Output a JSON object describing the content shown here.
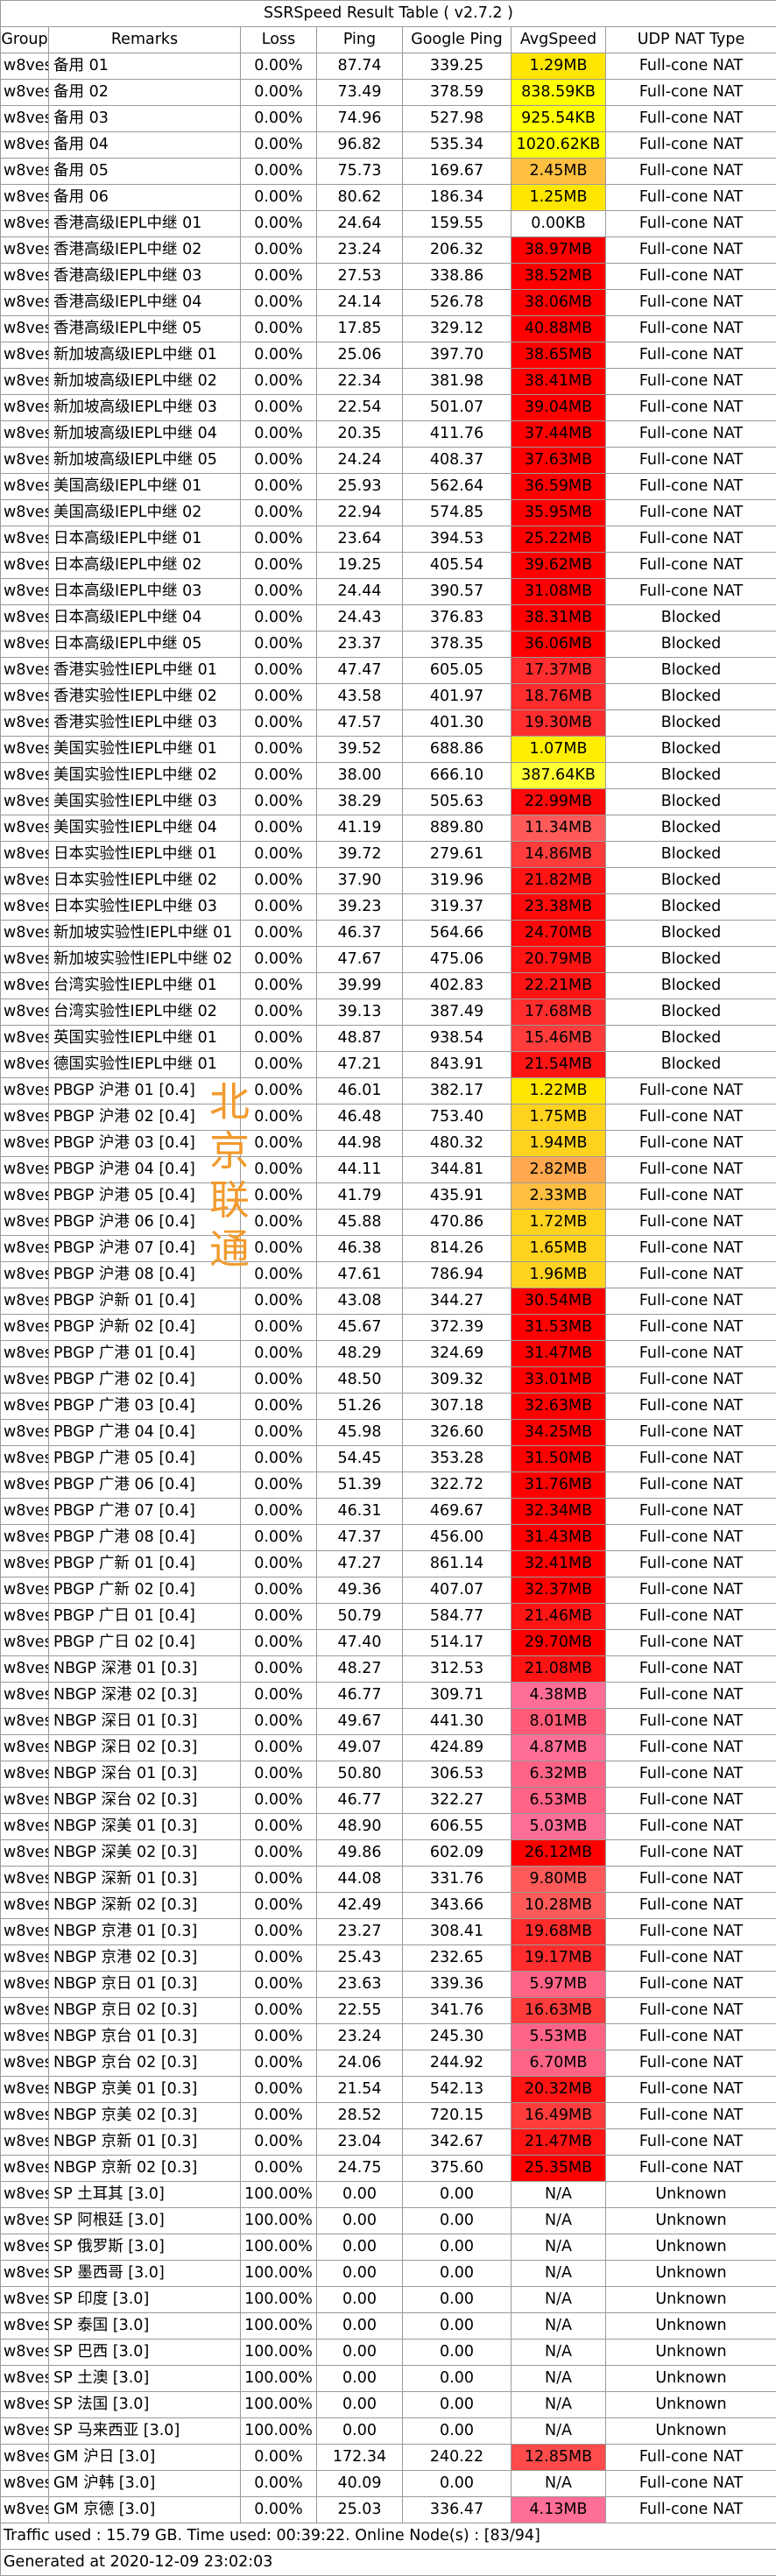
{
  "title": "SSRSpeed Result Table ( v2.7.2 )",
  "headers": [
    "Group",
    "Remarks",
    "Loss",
    "Ping",
    "Google Ping",
    "AvgSpeed",
    "UDP NAT Type"
  ],
  "watermark": [
    "北",
    "京",
    "联",
    "通"
  ],
  "colors": {
    "fast": "#ff0000",
    "mid": "#fa8072",
    "slow": "#ff69b4",
    "okay": "#ffa84d",
    "low": "#ffd700",
    "lower": "#ffff00",
    "none": "#ffffff"
  },
  "rows": [
    [
      "w8ves",
      "备用 01",
      "0.00%",
      "87.74",
      "339.25",
      "1.29MB",
      "Full-cone NAT",
      "#ffe600"
    ],
    [
      "w8ves",
      "备用 02",
      "0.00%",
      "73.49",
      "378.59",
      "838.59KB",
      "Full-cone NAT",
      "#ffff00"
    ],
    [
      "w8ves",
      "备用 03",
      "0.00%",
      "74.96",
      "527.98",
      "925.54KB",
      "Full-cone NAT",
      "#ffff00"
    ],
    [
      "w8ves",
      "备用 04",
      "0.00%",
      "96.82",
      "535.34",
      "1020.62KB",
      "Full-cone NAT",
      "#ffff00"
    ],
    [
      "w8ves",
      "备用 05",
      "0.00%",
      "75.73",
      "169.67",
      "2.45MB",
      "Full-cone NAT",
      "#ffbf40"
    ],
    [
      "w8ves",
      "备用 06",
      "0.00%",
      "80.62",
      "186.34",
      "1.25MB",
      "Full-cone NAT",
      "#ffe600"
    ],
    [
      "w8ves",
      "香港高级IEPL中继 01",
      "0.00%",
      "24.64",
      "159.55",
      "0.00KB",
      "Full-cone NAT",
      "#ffffff"
    ],
    [
      "w8ves",
      "香港高级IEPL中继 02",
      "0.00%",
      "23.24",
      "206.32",
      "38.97MB",
      "Full-cone NAT",
      "#ff0000"
    ],
    [
      "w8ves",
      "香港高级IEPL中继 03",
      "0.00%",
      "27.53",
      "338.86",
      "38.52MB",
      "Full-cone NAT",
      "#ff0000"
    ],
    [
      "w8ves",
      "香港高级IEPL中继 04",
      "0.00%",
      "24.14",
      "526.78",
      "38.06MB",
      "Full-cone NAT",
      "#ff0000"
    ],
    [
      "w8ves",
      "香港高级IEPL中继 05",
      "0.00%",
      "17.85",
      "329.12",
      "40.88MB",
      "Full-cone NAT",
      "#ff0000"
    ],
    [
      "w8ves",
      "新加坡高级IEPL中继 01",
      "0.00%",
      "25.06",
      "397.70",
      "38.65MB",
      "Full-cone NAT",
      "#ff0000"
    ],
    [
      "w8ves",
      "新加坡高级IEPL中继 02",
      "0.00%",
      "22.34",
      "381.98",
      "38.41MB",
      "Full-cone NAT",
      "#ff0000"
    ],
    [
      "w8ves",
      "新加坡高级IEPL中继 03",
      "0.00%",
      "22.54",
      "501.07",
      "39.04MB",
      "Full-cone NAT",
      "#ff0000"
    ],
    [
      "w8ves",
      "新加坡高级IEPL中继 04",
      "0.00%",
      "20.35",
      "411.76",
      "37.44MB",
      "Full-cone NAT",
      "#ff0000"
    ],
    [
      "w8ves",
      "新加坡高级IEPL中继 05",
      "0.00%",
      "24.24",
      "408.37",
      "37.63MB",
      "Full-cone NAT",
      "#ff0000"
    ],
    [
      "w8ves",
      "美国高级IEPL中继 01",
      "0.00%",
      "25.93",
      "562.64",
      "36.59MB",
      "Full-cone NAT",
      "#ff0000"
    ],
    [
      "w8ves",
      "美国高级IEPL中继 02",
      "0.00%",
      "22.94",
      "574.85",
      "35.95MB",
      "Full-cone NAT",
      "#ff0000"
    ],
    [
      "w8ves",
      "日本高级IEPL中继 01",
      "0.00%",
      "23.64",
      "394.53",
      "25.22MB",
      "Full-cone NAT",
      "#ff0000"
    ],
    [
      "w8ves",
      "日本高级IEPL中继 02",
      "0.00%",
      "19.25",
      "405.54",
      "39.62MB",
      "Full-cone NAT",
      "#ff0000"
    ],
    [
      "w8ves",
      "日本高级IEPL中继 03",
      "0.00%",
      "24.44",
      "390.57",
      "31.08MB",
      "Full-cone NAT",
      "#ff0000"
    ],
    [
      "w8ves",
      "日本高级IEPL中继 04",
      "0.00%",
      "24.43",
      "376.83",
      "38.31MB",
      "Blocked",
      "#ff0000"
    ],
    [
      "w8ves",
      "日本高级IEPL中继 05",
      "0.00%",
      "23.37",
      "378.35",
      "36.06MB",
      "Blocked",
      "#ff0000"
    ],
    [
      "w8ves",
      "香港实验性IEPL中继 01",
      "0.00%",
      "47.47",
      "605.05",
      "17.37MB",
      "Blocked",
      "#ff2d2d"
    ],
    [
      "w8ves",
      "香港实验性IEPL中继 02",
      "0.00%",
      "43.58",
      "401.97",
      "18.76MB",
      "Blocked",
      "#ff2d2d"
    ],
    [
      "w8ves",
      "香港实验性IEPL中继 03",
      "0.00%",
      "47.57",
      "401.30",
      "19.30MB",
      "Blocked",
      "#ff2d2d"
    ],
    [
      "w8ves",
      "美国实验性IEPL中继 01",
      "0.00%",
      "39.52",
      "688.86",
      "1.07MB",
      "Blocked",
      "#ffee00"
    ],
    [
      "w8ves",
      "美国实验性IEPL中继 02",
      "0.00%",
      "38.00",
      "666.10",
      "387.64KB",
      "Blocked",
      "#ffff33"
    ],
    [
      "w8ves",
      "美国实验性IEPL中继 03",
      "0.00%",
      "38.29",
      "505.63",
      "22.99MB",
      "Blocked",
      "#ff0a0a"
    ],
    [
      "w8ves",
      "美国实验性IEPL中继 04",
      "0.00%",
      "41.19",
      "889.80",
      "11.34MB",
      "Blocked",
      "#ff5a5a"
    ],
    [
      "w8ves",
      "日本实验性IEPL中继 01",
      "0.00%",
      "39.72",
      "279.61",
      "14.86MB",
      "Blocked",
      "#ff3c3c"
    ],
    [
      "w8ves",
      "日本实验性IEPL中继 02",
      "0.00%",
      "37.90",
      "319.96",
      "21.82MB",
      "Blocked",
      "#ff1414"
    ],
    [
      "w8ves",
      "日本实验性IEPL中继 03",
      "0.00%",
      "39.23",
      "319.37",
      "23.38MB",
      "Blocked",
      "#ff0a0a"
    ],
    [
      "w8ves",
      "新加坡实验性IEPL中继 01",
      "0.00%",
      "46.37",
      "564.66",
      "24.70MB",
      "Blocked",
      "#ff0a0a"
    ],
    [
      "w8ves",
      "新加坡实验性IEPL中继 02",
      "0.00%",
      "47.67",
      "475.06",
      "20.79MB",
      "Blocked",
      "#ff1414"
    ],
    [
      "w8ves",
      "台湾实验性IEPL中继 01",
      "0.00%",
      "39.99",
      "402.83",
      "22.21MB",
      "Blocked",
      "#ff1414"
    ],
    [
      "w8ves",
      "台湾实验性IEPL中继 02",
      "0.00%",
      "39.13",
      "387.49",
      "17.68MB",
      "Blocked",
      "#ff2d2d"
    ],
    [
      "w8ves",
      "英国实验性IEPL中继 01",
      "0.00%",
      "48.87",
      "938.54",
      "15.46MB",
      "Blocked",
      "#ff3c3c"
    ],
    [
      "w8ves",
      "德国实验性IEPL中继 01",
      "0.00%",
      "47.21",
      "843.91",
      "21.54MB",
      "Blocked",
      "#ff1414"
    ],
    [
      "w8ves",
      "PBGP 沪港 01 [0.4]",
      "0.00%",
      "46.01",
      "382.17",
      "1.22MB",
      "Full-cone NAT",
      "#ffe600"
    ],
    [
      "w8ves",
      "PBGP 沪港 02 [0.4]",
      "0.00%",
      "46.48",
      "753.40",
      "1.75MB",
      "Full-cone NAT",
      "#ffd21e"
    ],
    [
      "w8ves",
      "PBGP 沪港 03 [0.4]",
      "0.00%",
      "44.98",
      "480.32",
      "1.94MB",
      "Full-cone NAT",
      "#ffd21e"
    ],
    [
      "w8ves",
      "PBGP 沪港 04 [0.4]",
      "0.00%",
      "44.11",
      "344.81",
      "2.82MB",
      "Full-cone NAT",
      "#ffa84d"
    ],
    [
      "w8ves",
      "PBGP 沪港 05 [0.4]",
      "0.00%",
      "41.79",
      "435.91",
      "2.33MB",
      "Full-cone NAT",
      "#ffbf40"
    ],
    [
      "w8ves",
      "PBGP 沪港 06 [0.4]",
      "0.00%",
      "45.88",
      "470.86",
      "1.72MB",
      "Full-cone NAT",
      "#ffd21e"
    ],
    [
      "w8ves",
      "PBGP 沪港 07 [0.4]",
      "0.00%",
      "46.38",
      "814.26",
      "1.65MB",
      "Full-cone NAT",
      "#ffd21e"
    ],
    [
      "w8ves",
      "PBGP 沪港 08 [0.4]",
      "0.00%",
      "47.61",
      "786.94",
      "1.96MB",
      "Full-cone NAT",
      "#ffd21e"
    ],
    [
      "w8ves",
      "PBGP 沪新 01 [0.4]",
      "0.00%",
      "43.08",
      "344.27",
      "30.54MB",
      "Full-cone NAT",
      "#ff0000"
    ],
    [
      "w8ves",
      "PBGP 沪新 02 [0.4]",
      "0.00%",
      "45.67",
      "372.39",
      "31.53MB",
      "Full-cone NAT",
      "#ff0000"
    ],
    [
      "w8ves",
      "PBGP 广港 01 [0.4]",
      "0.00%",
      "48.29",
      "324.69",
      "31.47MB",
      "Full-cone NAT",
      "#ff0000"
    ],
    [
      "w8ves",
      "PBGP 广港 02 [0.4]",
      "0.00%",
      "48.50",
      "309.32",
      "33.01MB",
      "Full-cone NAT",
      "#ff0000"
    ],
    [
      "w8ves",
      "PBGP 广港 03 [0.4]",
      "0.00%",
      "51.26",
      "307.18",
      "32.63MB",
      "Full-cone NAT",
      "#ff0000"
    ],
    [
      "w8ves",
      "PBGP 广港 04 [0.4]",
      "0.00%",
      "45.98",
      "326.60",
      "34.25MB",
      "Full-cone NAT",
      "#ff0000"
    ],
    [
      "w8ves",
      "PBGP 广港 05 [0.4]",
      "0.00%",
      "54.45",
      "353.28",
      "31.50MB",
      "Full-cone NAT",
      "#ff0000"
    ],
    [
      "w8ves",
      "PBGP 广港 06 [0.4]",
      "0.00%",
      "51.39",
      "322.72",
      "31.76MB",
      "Full-cone NAT",
      "#ff0000"
    ],
    [
      "w8ves",
      "PBGP 广港 07 [0.4]",
      "0.00%",
      "46.31",
      "469.67",
      "32.34MB",
      "Full-cone NAT",
      "#ff0000"
    ],
    [
      "w8ves",
      "PBGP 广港 08 [0.4]",
      "0.00%",
      "47.37",
      "456.00",
      "31.43MB",
      "Full-cone NAT",
      "#ff0000"
    ],
    [
      "w8ves",
      "PBGP 广新 01 [0.4]",
      "0.00%",
      "47.27",
      "861.14",
      "32.41MB",
      "Full-cone NAT",
      "#ff0000"
    ],
    [
      "w8ves",
      "PBGP 广新 02 [0.4]",
      "0.00%",
      "49.36",
      "407.07",
      "32.37MB",
      "Full-cone NAT",
      "#ff0000"
    ],
    [
      "w8ves",
      "PBGP 广日 01 [0.4]",
      "0.00%",
      "50.79",
      "584.77",
      "21.46MB",
      "Full-cone NAT",
      "#ff1414"
    ],
    [
      "w8ves",
      "PBGP 广日 02 [0.4]",
      "0.00%",
      "47.40",
      "514.17",
      "29.70MB",
      "Full-cone NAT",
      "#ff0000"
    ],
    [
      "w8ves",
      "NBGP 深港 01 [0.3]",
      "0.00%",
      "48.27",
      "312.53",
      "21.08MB",
      "Full-cone NAT",
      "#ff1414"
    ],
    [
      "w8ves",
      "NBGP 深港 02 [0.3]",
      "0.00%",
      "46.77",
      "309.71",
      "4.38MB",
      "Full-cone NAT",
      "#ff6e96"
    ],
    [
      "w8ves",
      "NBGP 深日 01 [0.3]",
      "0.00%",
      "49.67",
      "441.30",
      "8.01MB",
      "Full-cone NAT",
      "#ff5a78"
    ],
    [
      "w8ves",
      "NBGP 深日 02 [0.3]",
      "0.00%",
      "49.07",
      "424.89",
      "4.87MB",
      "Full-cone NAT",
      "#ff6e96"
    ],
    [
      "w8ves",
      "NBGP 深台 01 [0.3]",
      "0.00%",
      "50.80",
      "306.53",
      "6.32MB",
      "Full-cone NAT",
      "#ff6487"
    ],
    [
      "w8ves",
      "NBGP 深台 02 [0.3]",
      "0.00%",
      "46.77",
      "322.27",
      "6.53MB",
      "Full-cone NAT",
      "#ff6487"
    ],
    [
      "w8ves",
      "NBGP 深美 01 [0.3]",
      "0.00%",
      "48.90",
      "606.55",
      "5.03MB",
      "Full-cone NAT",
      "#ff6e96"
    ],
    [
      "w8ves",
      "NBGP 深美 02 [0.3]",
      "0.00%",
      "49.86",
      "602.09",
      "26.12MB",
      "Full-cone NAT",
      "#ff0000"
    ],
    [
      "w8ves",
      "NBGP 深新 01 [0.3]",
      "0.00%",
      "44.08",
      "331.76",
      "9.80MB",
      "Full-cone NAT",
      "#ff5a5a"
    ],
    [
      "w8ves",
      "NBGP 深新 02 [0.3]",
      "0.00%",
      "42.49",
      "343.66",
      "10.28MB",
      "Full-cone NAT",
      "#ff5a5a"
    ],
    [
      "w8ves",
      "NBGP 京港 01 [0.3]",
      "0.00%",
      "23.27",
      "308.41",
      "19.68MB",
      "Full-cone NAT",
      "#ff2d2d"
    ],
    [
      "w8ves",
      "NBGP 京港 02 [0.3]",
      "0.00%",
      "25.43",
      "232.65",
      "19.17MB",
      "Full-cone NAT",
      "#ff2d2d"
    ],
    [
      "w8ves",
      "NBGP 京日 01 [0.3]",
      "0.00%",
      "23.63",
      "339.36",
      "5.97MB",
      "Full-cone NAT",
      "#ff6487"
    ],
    [
      "w8ves",
      "NBGP 京日 02 [0.3]",
      "0.00%",
      "22.55",
      "341.76",
      "16.63MB",
      "Full-cone NAT",
      "#ff3c3c"
    ],
    [
      "w8ves",
      "NBGP 京台 01 [0.3]",
      "0.00%",
      "23.24",
      "245.30",
      "5.53MB",
      "Full-cone NAT",
      "#ff6487"
    ],
    [
      "w8ves",
      "NBGP 京台 02 [0.3]",
      "0.00%",
      "24.06",
      "244.92",
      "6.70MB",
      "Full-cone NAT",
      "#ff6487"
    ],
    [
      "w8ves",
      "NBGP 京美 01 [0.3]",
      "0.00%",
      "21.54",
      "542.13",
      "20.32MB",
      "Full-cone NAT",
      "#ff1414"
    ],
    [
      "w8ves",
      "NBGP 京美 02 [0.3]",
      "0.00%",
      "28.52",
      "720.15",
      "16.49MB",
      "Full-cone NAT",
      "#ff3c3c"
    ],
    [
      "w8ves",
      "NBGP 京新 01 [0.3]",
      "0.00%",
      "23.04",
      "342.67",
      "21.47MB",
      "Full-cone NAT",
      "#ff1414"
    ],
    [
      "w8ves",
      "NBGP 京新 02 [0.3]",
      "0.00%",
      "24.75",
      "375.60",
      "25.35MB",
      "Full-cone NAT",
      "#ff0000"
    ],
    [
      "w8ves",
      "SP 土耳其 [3.0]",
      "100.00%",
      "0.00",
      "0.00",
      "N/A",
      "Unknown",
      "#ffffff"
    ],
    [
      "w8ves",
      "SP 阿根廷 [3.0]",
      "100.00%",
      "0.00",
      "0.00",
      "N/A",
      "Unknown",
      "#ffffff"
    ],
    [
      "w8ves",
      "SP 俄罗斯 [3.0]",
      "100.00%",
      "0.00",
      "0.00",
      "N/A",
      "Unknown",
      "#ffffff"
    ],
    [
      "w8ves",
      "SP 墨西哥 [3.0]",
      "100.00%",
      "0.00",
      "0.00",
      "N/A",
      "Unknown",
      "#ffffff"
    ],
    [
      "w8ves",
      "SP 印度 [3.0]",
      "100.00%",
      "0.00",
      "0.00",
      "N/A",
      "Unknown",
      "#ffffff"
    ],
    [
      "w8ves",
      "SP 泰国 [3.0]",
      "100.00%",
      "0.00",
      "0.00",
      "N/A",
      "Unknown",
      "#ffffff"
    ],
    [
      "w8ves",
      "SP 巴西 [3.0]",
      "100.00%",
      "0.00",
      "0.00",
      "N/A",
      "Unknown",
      "#ffffff"
    ],
    [
      "w8ves",
      "SP 土澳 [3.0]",
      "100.00%",
      "0.00",
      "0.00",
      "N/A",
      "Unknown",
      "#ffffff"
    ],
    [
      "w8ves",
      "SP 法国 [3.0]",
      "100.00%",
      "0.00",
      "0.00",
      "N/A",
      "Unknown",
      "#ffffff"
    ],
    [
      "w8ves",
      "SP 马来西亚 [3.0]",
      "100.00%",
      "0.00",
      "0.00",
      "N/A",
      "Unknown",
      "#ffffff"
    ],
    [
      "w8ves",
      "GM 沪日 [3.0]",
      "0.00%",
      "172.34",
      "240.22",
      "12.85MB",
      "Full-cone NAT",
      "#ff4b4b"
    ],
    [
      "w8ves",
      "GM 沪韩 [3.0]",
      "0.00%",
      "40.09",
      "0.00",
      "N/A",
      "Full-cone NAT",
      "#ffffff"
    ],
    [
      "w8ves",
      "GM 京德 [3.0]",
      "0.00%",
      "25.03",
      "336.47",
      "4.13MB",
      "Full-cone NAT",
      "#ff6e96"
    ]
  ],
  "footer": {
    "traffic": "Traffic used : 15.79 GB. Time used: 00:39:22. Online Node(s) : [83/94]",
    "generated": "Generated at 2020-12-09 23:02:03"
  }
}
